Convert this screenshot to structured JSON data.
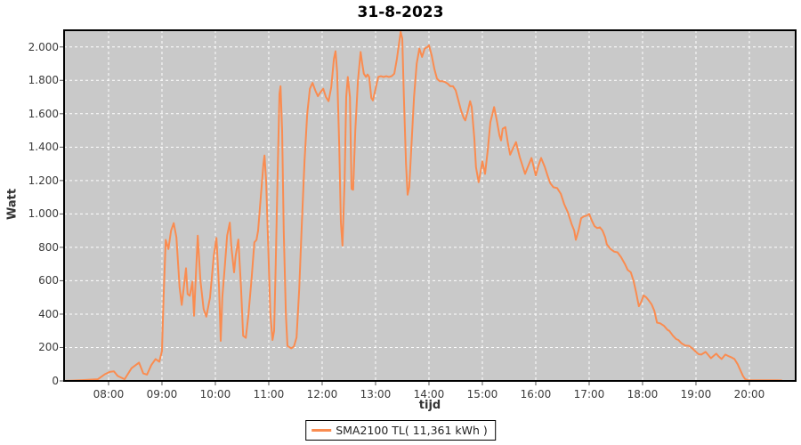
{
  "title": "31-8-2023",
  "axes": {
    "x_label": "tijd",
    "y_label": "Watt"
  },
  "legend": {
    "label": "SMA2100 TL( 11,361 kWh )",
    "swatch": "orange-line-swatch"
  },
  "colors": {
    "series": "#fa8c50",
    "plot_background": "#c9c9c9",
    "grid": "#ffffff",
    "axis_border": "#000000",
    "tick_mark": "#555555",
    "tick_text": "#3a3a3a"
  },
  "chart_data": {
    "type": "line",
    "title": "31-8-2023",
    "xlabel": "tijd",
    "ylabel": "Watt",
    "x_unit": "decimal_hours",
    "xlim": [
      7.167,
      20.867
    ],
    "ylim": [
      0,
      2100
    ],
    "grid": true,
    "legend_position": "bottom-center",
    "x_ticks": {
      "values": [
        8,
        9,
        10,
        11,
        12,
        13,
        14,
        15,
        16,
        17,
        18,
        19,
        20
      ],
      "labels": [
        "08:00",
        "09:00",
        "10:00",
        "11:00",
        "12:00",
        "13:00",
        "14:00",
        "15:00",
        "16:00",
        "17:00",
        "18:00",
        "19:00",
        "20:00"
      ]
    },
    "y_ticks": {
      "values": [
        0,
        200,
        400,
        600,
        800,
        1000,
        1200,
        1400,
        1600,
        1800,
        2000
      ],
      "labels": [
        "0",
        "200",
        "400",
        "600",
        "800",
        "1.000",
        "1.200",
        "1.400",
        "1.600",
        "1.800",
        "2.000"
      ]
    },
    "series": [
      {
        "name": "SMA2100 TL( 11,361 kWh )",
        "color": "#fa8c50",
        "points": [
          [
            7.17,
            0
          ],
          [
            7.33,
            2
          ],
          [
            7.5,
            5
          ],
          [
            7.8,
            10
          ],
          [
            7.93,
            40
          ],
          [
            8.03,
            55
          ],
          [
            8.1,
            57
          ],
          [
            8.17,
            30
          ],
          [
            8.3,
            10
          ],
          [
            8.43,
            76
          ],
          [
            8.57,
            110
          ],
          [
            8.65,
            45
          ],
          [
            8.72,
            38
          ],
          [
            8.8,
            95
          ],
          [
            8.88,
            131
          ],
          [
            8.95,
            115
          ],
          [
            9.0,
            180
          ],
          [
            9.03,
            500
          ],
          [
            9.07,
            845
          ],
          [
            9.12,
            790
          ],
          [
            9.17,
            900
          ],
          [
            9.22,
            945
          ],
          [
            9.27,
            860
          ],
          [
            9.33,
            560
          ],
          [
            9.37,
            455
          ],
          [
            9.43,
            620
          ],
          [
            9.45,
            675
          ],
          [
            9.48,
            520
          ],
          [
            9.52,
            510
          ],
          [
            9.57,
            595
          ],
          [
            9.6,
            390
          ],
          [
            9.63,
            600
          ],
          [
            9.67,
            870
          ],
          [
            9.72,
            600
          ],
          [
            9.78,
            430
          ],
          [
            9.83,
            385
          ],
          [
            9.9,
            500
          ],
          [
            9.97,
            750
          ],
          [
            10.02,
            856
          ],
          [
            10.07,
            550
          ],
          [
            10.1,
            240
          ],
          [
            10.13,
            500
          ],
          [
            10.18,
            700
          ],
          [
            10.22,
            870
          ],
          [
            10.27,
            948
          ],
          [
            10.3,
            800
          ],
          [
            10.35,
            650
          ],
          [
            10.38,
            750
          ],
          [
            10.43,
            847
          ],
          [
            10.48,
            560
          ],
          [
            10.52,
            270
          ],
          [
            10.57,
            258
          ],
          [
            10.62,
            400
          ],
          [
            10.68,
            620
          ],
          [
            10.73,
            830
          ],
          [
            10.77,
            845
          ],
          [
            10.8,
            900
          ],
          [
            10.85,
            1100
          ],
          [
            10.9,
            1300
          ],
          [
            10.92,
            1350
          ],
          [
            10.95,
            1200
          ],
          [
            11.0,
            700
          ],
          [
            11.03,
            400
          ],
          [
            11.07,
            245
          ],
          [
            11.1,
            300
          ],
          [
            11.13,
            700
          ],
          [
            11.17,
            1300
          ],
          [
            11.2,
            1720
          ],
          [
            11.22,
            1765
          ],
          [
            11.25,
            1500
          ],
          [
            11.28,
            900
          ],
          [
            11.32,
            400
          ],
          [
            11.35,
            210
          ],
          [
            11.42,
            195
          ],
          [
            11.47,
            205
          ],
          [
            11.52,
            260
          ],
          [
            11.57,
            550
          ],
          [
            11.62,
            950
          ],
          [
            11.67,
            1320
          ],
          [
            11.72,
            1600
          ],
          [
            11.77,
            1750
          ],
          [
            11.82,
            1785
          ],
          [
            11.87,
            1740
          ],
          [
            11.92,
            1705
          ],
          [
            11.97,
            1730
          ],
          [
            12.02,
            1750
          ],
          [
            12.07,
            1700
          ],
          [
            12.12,
            1675
          ],
          [
            12.17,
            1760
          ],
          [
            12.22,
            1930
          ],
          [
            12.25,
            1975
          ],
          [
            12.28,
            1850
          ],
          [
            12.32,
            1400
          ],
          [
            12.35,
            950
          ],
          [
            12.38,
            810
          ],
          [
            12.42,
            1200
          ],
          [
            12.45,
            1700
          ],
          [
            12.48,
            1820
          ],
          [
            12.52,
            1700
          ],
          [
            12.55,
            1150
          ],
          [
            12.58,
            1145
          ],
          [
            12.62,
            1500
          ],
          [
            12.67,
            1800
          ],
          [
            12.72,
            1970
          ],
          [
            12.75,
            1900
          ],
          [
            12.78,
            1840
          ],
          [
            12.82,
            1820
          ],
          [
            12.85,
            1835
          ],
          [
            12.88,
            1820
          ],
          [
            12.92,
            1695
          ],
          [
            12.95,
            1680
          ],
          [
            13.0,
            1750
          ],
          [
            13.05,
            1820
          ],
          [
            13.1,
            1825
          ],
          [
            13.15,
            1820
          ],
          [
            13.2,
            1825
          ],
          [
            13.25,
            1820
          ],
          [
            13.3,
            1825
          ],
          [
            13.35,
            1840
          ],
          [
            13.4,
            1930
          ],
          [
            13.43,
            2000
          ],
          [
            13.47,
            2090
          ],
          [
            13.5,
            2050
          ],
          [
            13.53,
            1700
          ],
          [
            13.57,
            1300
          ],
          [
            13.6,
            1115
          ],
          [
            13.63,
            1160
          ],
          [
            13.67,
            1400
          ],
          [
            13.72,
            1700
          ],
          [
            13.77,
            1900
          ],
          [
            13.82,
            1990
          ],
          [
            13.87,
            1940
          ],
          [
            13.92,
            1990
          ],
          [
            13.97,
            2000
          ],
          [
            14.0,
            2010
          ],
          [
            14.05,
            1950
          ],
          [
            14.1,
            1870
          ],
          [
            14.15,
            1810
          ],
          [
            14.2,
            1795
          ],
          [
            14.25,
            1795
          ],
          [
            14.3,
            1790
          ],
          [
            14.35,
            1780
          ],
          [
            14.4,
            1765
          ],
          [
            14.45,
            1765
          ],
          [
            14.5,
            1740
          ],
          [
            14.55,
            1680
          ],
          [
            14.6,
            1620
          ],
          [
            14.65,
            1575
          ],
          [
            14.68,
            1560
          ],
          [
            14.73,
            1620
          ],
          [
            14.77,
            1675
          ],
          [
            14.8,
            1640
          ],
          [
            14.85,
            1450
          ],
          [
            14.88,
            1280
          ],
          [
            14.93,
            1190
          ],
          [
            14.97,
            1260
          ],
          [
            15.0,
            1315
          ],
          [
            15.05,
            1240
          ],
          [
            15.1,
            1380
          ],
          [
            15.15,
            1550
          ],
          [
            15.22,
            1640
          ],
          [
            15.27,
            1560
          ],
          [
            15.32,
            1470
          ],
          [
            15.35,
            1440
          ],
          [
            15.38,
            1510
          ],
          [
            15.43,
            1520
          ],
          [
            15.48,
            1420
          ],
          [
            15.52,
            1355
          ],
          [
            15.57,
            1390
          ],
          [
            15.63,
            1430
          ],
          [
            15.7,
            1340
          ],
          [
            15.75,
            1290
          ],
          [
            15.8,
            1240
          ],
          [
            15.85,
            1280
          ],
          [
            15.92,
            1335
          ],
          [
            15.97,
            1270
          ],
          [
            16.0,
            1230
          ],
          [
            16.05,
            1290
          ],
          [
            16.1,
            1335
          ],
          [
            16.17,
            1280
          ],
          [
            16.22,
            1230
          ],
          [
            16.27,
            1185
          ],
          [
            16.33,
            1160
          ],
          [
            16.4,
            1155
          ],
          [
            16.47,
            1120
          ],
          [
            16.53,
            1060
          ],
          [
            16.6,
            1010
          ],
          [
            16.67,
            940
          ],
          [
            16.72,
            900
          ],
          [
            16.75,
            845
          ],
          [
            16.8,
            900
          ],
          [
            16.85,
            975
          ],
          [
            16.9,
            985
          ],
          [
            16.95,
            990
          ],
          [
            17.0,
            1000
          ],
          [
            17.05,
            960
          ],
          [
            17.1,
            927
          ],
          [
            17.15,
            915
          ],
          [
            17.2,
            920
          ],
          [
            17.25,
            900
          ],
          [
            17.3,
            860
          ],
          [
            17.33,
            818
          ],
          [
            17.4,
            790
          ],
          [
            17.47,
            774
          ],
          [
            17.53,
            770
          ],
          [
            17.6,
            740
          ],
          [
            17.67,
            700
          ],
          [
            17.72,
            665
          ],
          [
            17.78,
            650
          ],
          [
            17.83,
            600
          ],
          [
            17.88,
            528
          ],
          [
            17.93,
            447
          ],
          [
            17.97,
            470
          ],
          [
            18.02,
            512
          ],
          [
            18.07,
            500
          ],
          [
            18.12,
            480
          ],
          [
            18.17,
            458
          ],
          [
            18.22,
            420
          ],
          [
            18.27,
            349
          ],
          [
            18.33,
            345
          ],
          [
            18.4,
            330
          ],
          [
            18.47,
            305
          ],
          [
            18.5,
            300
          ],
          [
            18.57,
            270
          ],
          [
            18.63,
            250
          ],
          [
            18.67,
            245
          ],
          [
            18.73,
            225
          ],
          [
            18.8,
            212
          ],
          [
            18.87,
            210
          ],
          [
            18.93,
            195
          ],
          [
            19.0,
            174
          ],
          [
            19.05,
            160
          ],
          [
            19.1,
            158
          ],
          [
            19.15,
            168
          ],
          [
            19.18,
            174
          ],
          [
            19.23,
            155
          ],
          [
            19.28,
            136
          ],
          [
            19.33,
            150
          ],
          [
            19.38,
            163
          ],
          [
            19.43,
            145
          ],
          [
            19.48,
            131
          ],
          [
            19.55,
            158
          ],
          [
            19.6,
            150
          ],
          [
            19.67,
            140
          ],
          [
            19.72,
            131
          ],
          [
            19.78,
            100
          ],
          [
            19.83,
            65
          ],
          [
            19.88,
            30
          ],
          [
            19.92,
            11
          ],
          [
            19.97,
            5
          ],
          [
            20.1,
            4
          ],
          [
            20.3,
            4
          ],
          [
            20.5,
            4
          ],
          [
            20.6,
            3
          ]
        ]
      }
    ]
  }
}
